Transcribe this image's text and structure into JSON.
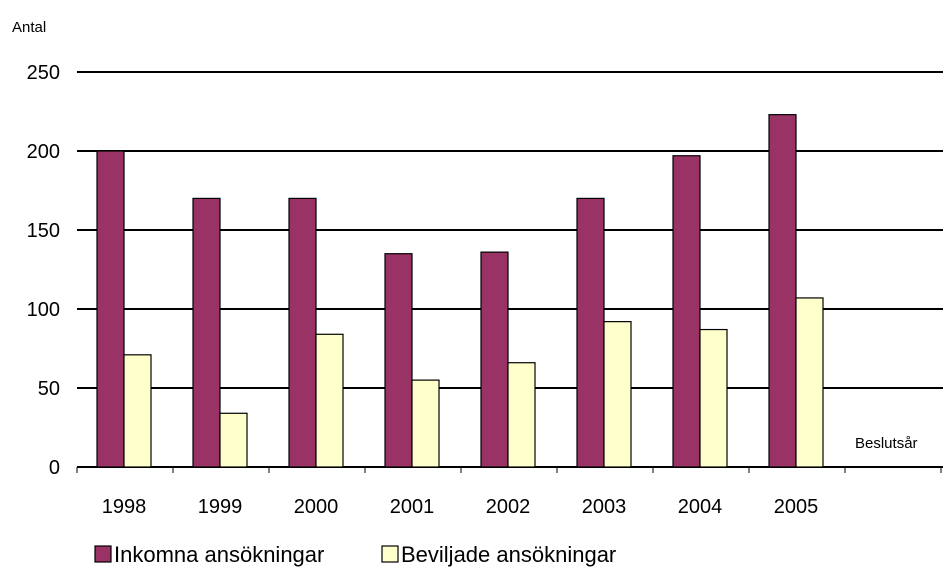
{
  "chart_data": {
    "type": "bar",
    "ylabel": "Antal",
    "xlabel": "Beslutsår",
    "ylim": [
      0,
      250
    ],
    "yticks": [
      0,
      50,
      100,
      150,
      200,
      250
    ],
    "grid": true,
    "legend_position": "bottom",
    "categories": [
      "1998",
      "1999",
      "2000",
      "2001",
      "2002",
      "2003",
      "2004",
      "2005"
    ],
    "series": [
      {
        "name": "Inkomna ansökningar",
        "color": "#993366",
        "values": [
          200,
          170,
          170,
          135,
          136,
          170,
          197,
          223
        ]
      },
      {
        "name": "Beviljade ansökningar",
        "color": "#FFFFCC",
        "values": [
          71,
          34,
          84,
          55,
          66,
          92,
          87,
          107
        ]
      }
    ]
  }
}
